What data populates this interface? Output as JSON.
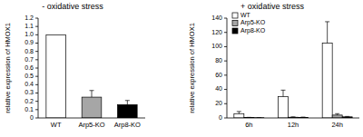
{
  "chart_data": [
    {
      "type": "bar",
      "title": "- oxidative stress",
      "y_label": "relative expression of HMOX1",
      "categories": [
        "WT",
        "Arp5-KO",
        "Arp8-KO"
      ],
      "values": [
        1,
        0.25,
        0.16
      ],
      "errors": [
        0,
        0.08,
        0.05
      ],
      "colors": [
        "#ffffff",
        "#a6a6a6",
        "#000000"
      ],
      "ylim": [
        0,
        1.2
      ],
      "yticks": [
        0,
        0.1,
        0.2,
        0.3,
        0.4,
        0.5,
        0.6,
        0.7,
        0.8,
        0.9,
        {
          "value": 1,
          "label": "1.0"
        },
        1.1,
        1.2
      ],
      "grid": false
    },
    {
      "type": "bar",
      "title": "+ oxidative stress",
      "y_label": "relative expression of HMOX1",
      "categories": [
        "6h",
        "12h",
        "24h"
      ],
      "series": [
        {
          "name": "WT",
          "color": "#ffffff",
          "values": [
            6,
            30,
            105
          ],
          "errors": [
            3,
            9,
            30
          ]
        },
        {
          "name": "Arp5-KO",
          "color": "#a6a6a6",
          "values": [
            0.5,
            1,
            4
          ],
          "errors": [
            0.3,
            0.5,
            2
          ]
        },
        {
          "name": "Arp8-KO",
          "color": "#000000",
          "values": [
            0.3,
            0.8,
            1.5
          ],
          "errors": [
            0.2,
            0.4,
            0.6
          ]
        }
      ],
      "ylim": [
        0,
        140
      ],
      "yticks": [
        0,
        20,
        40,
        60,
        80,
        100,
        120,
        140
      ],
      "legend": "upper left",
      "grid": false
    }
  ]
}
